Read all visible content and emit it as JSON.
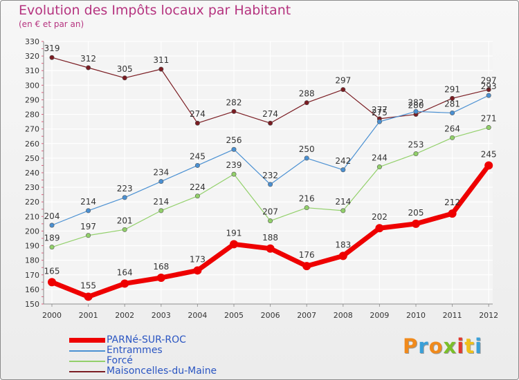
{
  "title": "Evolution des Impôts locaux par Habitant",
  "subtitle": "(en € et par an)",
  "brand": {
    "text": "Proxiti",
    "colors": [
      "#f08a1c",
      "#3aa0d8",
      "#f08a1c",
      "#7bbf2a",
      "#e0382e",
      "#f0c018",
      "#3aa0d8"
    ]
  },
  "chart_data": {
    "type": "line",
    "title": "Evolution des Impôts locaux par Habitant",
    "subtitle": "(en € et par an)",
    "xlabel": "",
    "ylabel": "",
    "ylim": [
      150,
      330
    ],
    "ytick_step": 10,
    "grid": true,
    "legend_position": "bottom-left",
    "categories": [
      "2000",
      "2001",
      "2002",
      "2003",
      "2004",
      "2005",
      "2006",
      "2007",
      "2008",
      "2009",
      "2010",
      "2011",
      "2012"
    ],
    "series": [
      {
        "name": "Maisoncelles-du-Maine",
        "color": "#7a1c22",
        "width": 1.2,
        "emphasis": false,
        "values": [
          319,
          312,
          305,
          311,
          274,
          282,
          274,
          288,
          297,
          277,
          280,
          291,
          297
        ],
        "labels": [
          "319",
          "312",
          "305",
          "311",
          "274",
          "282",
          "274",
          "288",
          "297",
          "277",
          "280",
          "291",
          "297"
        ]
      },
      {
        "name": "Entrammes",
        "color": "#4a90d2",
        "width": 1.2,
        "emphasis": false,
        "values": [
          204,
          214,
          223,
          234,
          245,
          256,
          232,
          250,
          242,
          275,
          282,
          281,
          293
        ],
        "labels": [
          "204",
          "214",
          "223",
          "234",
          "245",
          "256",
          "232",
          "250",
          "242",
          "275",
          "282",
          "281",
          "293"
        ]
      },
      {
        "name": "Forcé",
        "color": "#92d06a",
        "width": 1.2,
        "emphasis": false,
        "values": [
          189,
          197,
          201,
          214,
          224,
          239,
          207,
          216,
          214,
          244,
          253,
          264,
          271
        ],
        "labels": [
          "189",
          "197",
          "201",
          "214",
          "224",
          "239",
          "207",
          "216",
          "214",
          "244",
          "253",
          "264",
          "271"
        ]
      },
      {
        "name": "PARNé-SUR-ROC",
        "color": "#ee0000",
        "width": 7,
        "emphasis": true,
        "values": [
          165,
          155,
          164,
          168,
          173,
          191,
          188,
          176,
          183,
          202,
          205,
          212,
          245
        ],
        "labels": [
          "165",
          "155",
          "164",
          "168",
          "173",
          "191",
          "188",
          "176",
          "183",
          "202",
          "205",
          "212",
          "245"
        ]
      }
    ],
    "legend_order": [
      "PARNé-SUR-ROC",
      "Entrammes",
      "Forcé",
      "Maisoncelles-du-Maine"
    ]
  }
}
